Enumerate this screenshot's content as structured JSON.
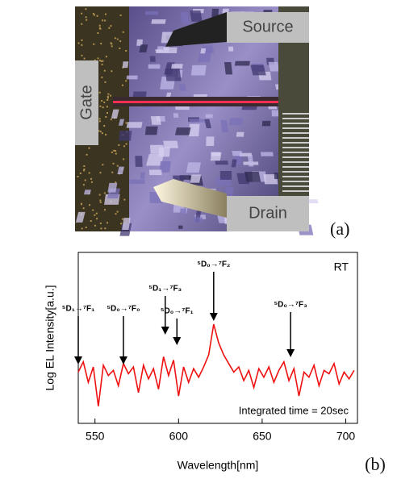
{
  "photo": {
    "labels": {
      "source": "Source",
      "gate": "Gate",
      "drain": "Drain"
    },
    "panel_label": "(a)"
  },
  "chart_data": {
    "type": "line",
    "panel_label": "(b)",
    "x_label": "Wavelength[nm]",
    "y_label": "Log EL Intensity[a.u.]",
    "annotations": [
      {
        "text": "⁵D₁→⁷F₁",
        "x": 540
      },
      {
        "text": "⁵D₀→⁷F₀",
        "x": 567
      },
      {
        "text": "⁵D₁→⁷F₃",
        "x": 592
      },
      {
        "text": "⁵D₀→⁷F₁",
        "x": 599
      },
      {
        "text": "⁵D₀→⁷F₂",
        "x": 621
      },
      {
        "text": "⁵D₀→⁷F₃",
        "x": 667
      }
    ],
    "corner_label": "RT",
    "note": "Integrated time = 20sec",
    "xlim": [
      540,
      707
    ],
    "xticks": [
      550,
      600,
      650,
      700
    ],
    "ylim": [
      0,
      10
    ],
    "series": [
      {
        "color": "#ee1111",
        "x": [
          540,
          543,
          546,
          549,
          552,
          555,
          558,
          561,
          564,
          567,
          570,
          573,
          576,
          579,
          582,
          585,
          588,
          591,
          594,
          597,
          600,
          603,
          606,
          609,
          612,
          615,
          618,
          621,
          624,
          627,
          630,
          633,
          636,
          639,
          642,
          645,
          648,
          651,
          654,
          657,
          660,
          663,
          666,
          669,
          672,
          675,
          678,
          681,
          684,
          687,
          690,
          693,
          696,
          699,
          702,
          705
        ],
        "values": [
          3.0,
          3.6,
          2.4,
          3.3,
          1.0,
          3.4,
          2.8,
          3.1,
          2.2,
          3.5,
          2.9,
          3.3,
          1.8,
          3.4,
          2.6,
          3.2,
          2.0,
          3.9,
          2.8,
          3.7,
          1.6,
          3.3,
          2.4,
          3.2,
          2.7,
          3.3,
          4.0,
          5.8,
          4.7,
          4.0,
          3.5,
          3.0,
          3.3,
          2.5,
          3.1,
          2.1,
          3.2,
          2.7,
          3.3,
          2.4,
          3.1,
          3.6,
          2.5,
          3.2,
          1.6,
          3.0,
          2.7,
          3.4,
          2.2,
          3.1,
          2.9,
          3.5,
          2.3,
          3.0,
          2.6,
          3.1
        ]
      }
    ]
  }
}
